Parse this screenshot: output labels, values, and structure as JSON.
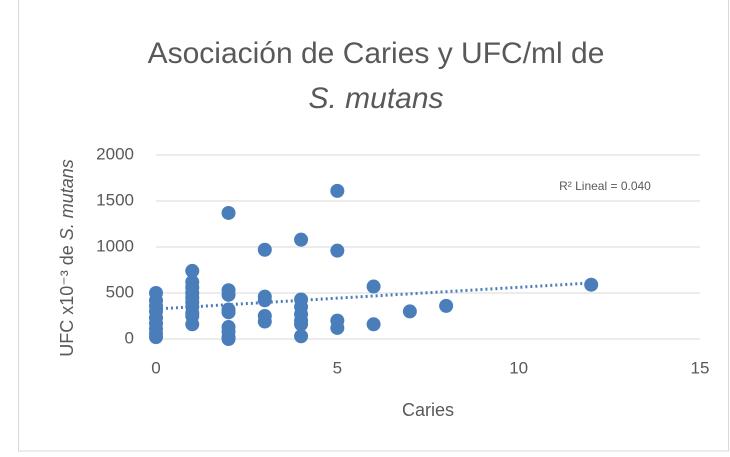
{
  "chart_data": {
    "type": "scatter",
    "title": "Asociación de Caries y UFC/ml de",
    "title_species": "S. mutans",
    "xlabel": "Caries",
    "ylabel": [
      "UFC x10⁻³  de ",
      "S. mutans"
    ],
    "x": [
      0,
      0,
      0,
      0,
      0,
      0,
      0,
      0,
      0,
      1,
      1,
      1,
      1,
      1,
      1,
      1,
      1,
      1,
      1,
      2,
      2,
      2,
      2,
      2,
      2,
      2,
      2,
      2,
      3,
      3,
      3,
      3,
      3,
      4,
      4,
      4,
      4,
      4,
      4,
      4,
      5,
      5,
      5,
      5,
      6,
      6,
      7,
      8,
      12
    ],
    "values": [
      500,
      420,
      360,
      300,
      230,
      170,
      110,
      60,
      20,
      740,
      620,
      560,
      500,
      450,
      400,
      350,
      280,
      250,
      160,
      1370,
      530,
      480,
      320,
      290,
      130,
      80,
      20,
      0,
      970,
      460,
      420,
      250,
      190,
      1080,
      430,
      350,
      270,
      200,
      160,
      30,
      1610,
      960,
      200,
      120,
      570,
      160,
      300,
      360,
      590
    ],
    "color": "#4a7ebb",
    "xlim": [
      0,
      15
    ],
    "xticks": [
      0,
      5,
      10,
      15
    ],
    "ylim": [
      0,
      2000
    ],
    "yticks": [
      0,
      500,
      1000,
      1500,
      2000
    ],
    "grid": true,
    "trendline": {
      "x": [
        0,
        12
      ],
      "y": [
        326,
        609
      ]
    },
    "annotation": "R² Lineal = 0.040"
  }
}
